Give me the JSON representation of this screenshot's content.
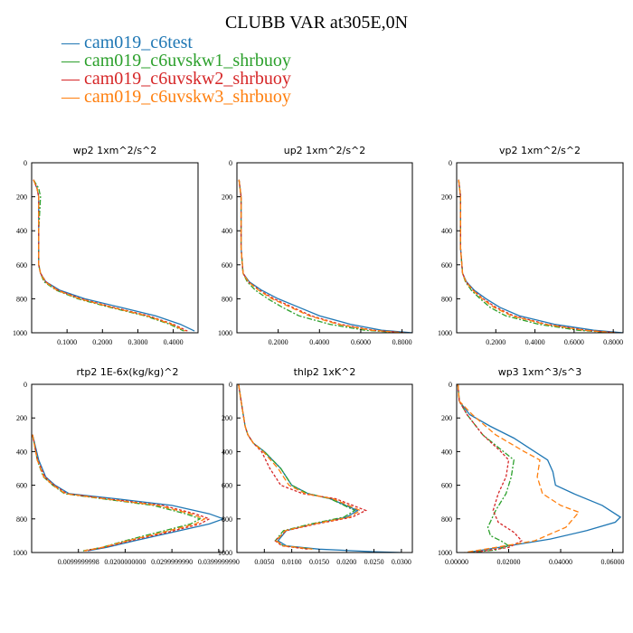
{
  "title": "CLUBB VAR at305E,0N",
  "legend": [
    {
      "label": "— cam019_c6test",
      "color": "#1f77b4"
    },
    {
      "label": "— cam019_c6uvskw1_shrbuoy",
      "color": "#2ca02c"
    },
    {
      "label": "— cam019_c6uvskw2_shrbuoy",
      "color": "#d62728"
    },
    {
      "label": "— cam019_c6uvskw3_shrbuoy",
      "color": "#ff7f0e"
    }
  ],
  "chart_data": [
    {
      "type": "line",
      "title": "wp2   1xm^2/s^2",
      "xlim": [
        0,
        0.47
      ],
      "ylim": [
        1000,
        0
      ],
      "xticks": [
        0.1,
        0.2,
        0.3,
        0.4
      ],
      "xtick_labels": [
        "0.1000",
        "0.2000",
        "0.3000",
        "0.4000"
      ],
      "yticks": [
        0,
        200,
        400,
        600,
        800,
        1000
      ],
      "series": [
        {
          "color": "#1f77b4",
          "dash": "",
          "x": [
            0.005,
            0.015,
            0.02,
            0.02,
            0.02,
            0.025,
            0.04,
            0.08,
            0.15,
            0.25,
            0.35,
            0.42,
            0.46
          ],
          "y": [
            100,
            150,
            200,
            400,
            600,
            650,
            700,
            750,
            800,
            850,
            900,
            950,
            990
          ]
        },
        {
          "color": "#2ca02c",
          "dash": "6,2,2,2",
          "x": [
            0.005,
            0.02,
            0.025,
            0.02,
            0.02,
            0.025,
            0.035,
            0.07,
            0.13,
            0.22,
            0.32,
            0.39,
            0.43
          ],
          "y": [
            100,
            150,
            200,
            400,
            600,
            650,
            700,
            750,
            800,
            850,
            900,
            950,
            990
          ]
        },
        {
          "color": "#d62728",
          "dash": "3,2",
          "x": [
            0.005,
            0.015,
            0.02,
            0.02,
            0.02,
            0.025,
            0.04,
            0.075,
            0.14,
            0.23,
            0.33,
            0.4,
            0.44
          ],
          "y": [
            100,
            150,
            200,
            400,
            600,
            650,
            700,
            750,
            800,
            850,
            900,
            950,
            990
          ]
        },
        {
          "color": "#ff7f0e",
          "dash": "6,3",
          "x": [
            0.005,
            0.015,
            0.02,
            0.02,
            0.02,
            0.025,
            0.038,
            0.072,
            0.135,
            0.225,
            0.325,
            0.395,
            0.435
          ],
          "y": [
            100,
            150,
            200,
            400,
            600,
            650,
            700,
            750,
            800,
            850,
            900,
            950,
            990
          ]
        }
      ]
    },
    {
      "type": "line",
      "title": "up2   1xm^2/s^2",
      "xlim": [
        0,
        0.85
      ],
      "ylim": [
        1000,
        0
      ],
      "xticks": [
        0.2,
        0.4,
        0.6,
        0.8
      ],
      "xtick_labels": [
        "0.2000",
        "0.4000",
        "0.6000",
        "0.8000"
      ],
      "yticks": [
        0,
        200,
        400,
        600,
        800,
        1000
      ],
      "series": [
        {
          "color": "#1f77b4",
          "dash": "",
          "x": [
            0.01,
            0.02,
            0.02,
            0.03,
            0.06,
            0.12,
            0.2,
            0.3,
            0.4,
            0.55,
            0.7,
            0.85
          ],
          "y": [
            100,
            200,
            500,
            650,
            700,
            750,
            800,
            850,
            900,
            950,
            985,
            1000
          ]
        },
        {
          "color": "#2ca02c",
          "dash": "6,2,2,2",
          "x": [
            0.01,
            0.02,
            0.02,
            0.03,
            0.05,
            0.09,
            0.15,
            0.22,
            0.3,
            0.45,
            0.62,
            0.8
          ],
          "y": [
            100,
            200,
            500,
            650,
            700,
            750,
            800,
            850,
            900,
            950,
            985,
            1000
          ]
        },
        {
          "color": "#d62728",
          "dash": "3,2",
          "x": [
            0.01,
            0.02,
            0.02,
            0.03,
            0.055,
            0.11,
            0.18,
            0.27,
            0.36,
            0.5,
            0.66,
            0.82
          ],
          "y": [
            100,
            200,
            500,
            650,
            700,
            750,
            800,
            850,
            900,
            950,
            985,
            1000
          ]
        },
        {
          "color": "#ff7f0e",
          "dash": "6,3",
          "x": [
            0.01,
            0.02,
            0.02,
            0.03,
            0.055,
            0.105,
            0.17,
            0.26,
            0.35,
            0.49,
            0.65,
            0.81
          ],
          "y": [
            100,
            200,
            500,
            650,
            700,
            750,
            800,
            850,
            900,
            950,
            985,
            1000
          ]
        }
      ]
    },
    {
      "type": "line",
      "title": "vp2   1xm^2/s^2",
      "xlim": [
        0,
        0.85
      ],
      "ylim": [
        1000,
        0
      ],
      "xticks": [
        0.2,
        0.4,
        0.6,
        0.8
      ],
      "xtick_labels": [
        "0.2000",
        "0.4000",
        "0.6000",
        "0.8000"
      ],
      "yticks": [
        0,
        200,
        400,
        600,
        800,
        1000
      ],
      "series": [
        {
          "color": "#1f77b4",
          "dash": "",
          "x": [
            0.01,
            0.02,
            0.02,
            0.03,
            0.05,
            0.09,
            0.15,
            0.22,
            0.32,
            0.5,
            0.7,
            0.85
          ],
          "y": [
            100,
            200,
            500,
            650,
            700,
            750,
            800,
            850,
            900,
            950,
            985,
            1000
          ]
        },
        {
          "color": "#2ca02c",
          "dash": "6,2,2,2",
          "x": [
            0.01,
            0.02,
            0.02,
            0.03,
            0.045,
            0.075,
            0.12,
            0.17,
            0.25,
            0.42,
            0.62,
            0.8
          ],
          "y": [
            100,
            200,
            500,
            650,
            700,
            750,
            800,
            850,
            900,
            950,
            985,
            1000
          ]
        },
        {
          "color": "#d62728",
          "dash": "3,2",
          "x": [
            0.01,
            0.02,
            0.02,
            0.03,
            0.048,
            0.085,
            0.135,
            0.2,
            0.29,
            0.46,
            0.66,
            0.82
          ],
          "y": [
            100,
            200,
            500,
            650,
            700,
            750,
            800,
            850,
            900,
            950,
            985,
            1000
          ]
        },
        {
          "color": "#ff7f0e",
          "dash": "6,3",
          "x": [
            0.01,
            0.02,
            0.02,
            0.03,
            0.047,
            0.082,
            0.13,
            0.19,
            0.28,
            0.45,
            0.65,
            0.81
          ],
          "y": [
            100,
            200,
            500,
            650,
            700,
            750,
            800,
            850,
            900,
            950,
            985,
            1000
          ]
        }
      ]
    },
    {
      "type": "line",
      "title": "rtp2   1E-6x(kg/kg)^2",
      "xlim": [
        0,
        0.041
      ],
      "ylim": [
        1000,
        0
      ],
      "xticks": [
        0.01,
        0.02,
        0.03,
        0.04
      ],
      "xtick_labels": [
        "0.0099999998",
        "0.0200000000",
        "0.0299999990",
        "0.0399999990"
      ],
      "yticks": [
        0,
        200,
        400,
        600,
        800,
        1000
      ],
      "series": [
        {
          "color": "#1f77b4",
          "dash": "",
          "x": [
            0.0002,
            0.0015,
            0.003,
            0.005,
            0.008,
            0.018,
            0.03,
            0.038,
            0.041,
            0.038,
            0.03,
            0.022,
            0.016,
            0.012
          ],
          "y": [
            300,
            450,
            550,
            600,
            650,
            680,
            720,
            770,
            800,
            830,
            880,
            930,
            970,
            990
          ]
        },
        {
          "color": "#2ca02c",
          "dash": "6,2,2,2",
          "x": [
            0.0002,
            0.0012,
            0.0025,
            0.0045,
            0.007,
            0.015,
            0.026,
            0.033,
            0.036,
            0.034,
            0.027,
            0.02,
            0.015,
            0.011
          ],
          "y": [
            300,
            450,
            550,
            600,
            650,
            680,
            720,
            770,
            800,
            830,
            880,
            930,
            970,
            990
          ]
        },
        {
          "color": "#d62728",
          "dash": "3,2",
          "x": [
            0.0002,
            0.0013,
            0.0028,
            0.0048,
            0.0075,
            0.016,
            0.028,
            0.035,
            0.038,
            0.036,
            0.029,
            0.021,
            0.0155,
            0.0115
          ],
          "y": [
            300,
            450,
            550,
            600,
            650,
            680,
            720,
            770,
            800,
            830,
            880,
            930,
            970,
            990
          ]
        },
        {
          "color": "#ff7f0e",
          "dash": "6,3",
          "x": [
            0.0002,
            0.0012,
            0.0026,
            0.0046,
            0.0072,
            0.0155,
            0.027,
            0.034,
            0.037,
            0.035,
            0.028,
            0.0205,
            0.015,
            0.0112
          ],
          "y": [
            300,
            450,
            550,
            600,
            650,
            680,
            720,
            770,
            800,
            830,
            880,
            930,
            970,
            990
          ]
        }
      ]
    },
    {
      "type": "line",
      "title": "thlp2   1xK^2",
      "xlim": [
        0,
        0.032
      ],
      "ylim": [
        1000,
        0
      ],
      "xticks": [
        0.005,
        0.01,
        0.015,
        0.02,
        0.025,
        0.03
      ],
      "xtick_labels": [
        "0.0050",
        "0.0100",
        "0.0150",
        "0.0200",
        "0.0250",
        "0.0300"
      ],
      "yticks": [
        0,
        200,
        400,
        600,
        800,
        1000
      ],
      "series": [
        {
          "color": "#1f77b4",
          "dash": "",
          "x": [
            0.0003,
            0.001,
            0.0015,
            0.002,
            0.003,
            0.005,
            0.008,
            0.01,
            0.013,
            0.017,
            0.022,
            0.02,
            0.014,
            0.009,
            0.0075,
            0.009,
            0.015,
            0.025,
            0.03
          ],
          "y": [
            0,
            150,
            250,
            300,
            350,
            400,
            500,
            600,
            650,
            680,
            750,
            790,
            830,
            870,
            930,
            960,
            980,
            995,
            1000
          ]
        },
        {
          "color": "#2ca02c",
          "dash": "6,2,2,2",
          "x": [
            0.0003,
            0.001,
            0.0015,
            0.002,
            0.003,
            0.005,
            0.008,
            0.01,
            0.013,
            0.017,
            0.0215,
            0.0195,
            0.0135,
            0.0085,
            0.007,
            0.0085,
            0.014
          ],
          "y": [
            0,
            150,
            250,
            300,
            350,
            400,
            500,
            600,
            650,
            680,
            750,
            790,
            830,
            870,
            930,
            960,
            980
          ]
        },
        {
          "color": "#d62728",
          "dash": "3,2",
          "x": [
            0.0003,
            0.001,
            0.0015,
            0.002,
            0.003,
            0.0045,
            0.006,
            0.008,
            0.012,
            0.018,
            0.0235,
            0.021,
            0.0145,
            0.009,
            0.007,
            0.0082,
            0.013
          ],
          "y": [
            0,
            150,
            250,
            300,
            350,
            400,
            500,
            600,
            650,
            680,
            750,
            790,
            830,
            870,
            930,
            960,
            980
          ]
        },
        {
          "color": "#ff7f0e",
          "dash": "6,3",
          "x": [
            0.0003,
            0.001,
            0.0015,
            0.002,
            0.003,
            0.0048,
            0.0075,
            0.0095,
            0.0125,
            0.0175,
            0.0225,
            0.0205,
            0.014,
            0.0088,
            0.0072,
            0.0085,
            0.0138
          ],
          "y": [
            0,
            150,
            250,
            300,
            350,
            400,
            500,
            600,
            650,
            680,
            750,
            790,
            830,
            870,
            930,
            960,
            980
          ]
        }
      ]
    },
    {
      "type": "line",
      "title": "wp3   1xm^3/s^3",
      "xlim": [
        0,
        0.064
      ],
      "ylim": [
        1000,
        0
      ],
      "xticks": [
        0,
        0.02,
        0.04,
        0.06
      ],
      "xtick_labels": [
        "0.00000",
        "0.02000",
        "0.04000",
        "0.06000"
      ],
      "yticks": [
        0,
        200,
        400,
        600,
        800,
        1000
      ],
      "series": [
        {
          "color": "#1f77b4",
          "dash": "",
          "x": [
            0.0005,
            0.001,
            0.005,
            0.013,
            0.022,
            0.03,
            0.035,
            0.037,
            0.038,
            0.045,
            0.056,
            0.063,
            0.061,
            0.05,
            0.036,
            0.02,
            0.004
          ],
          "y": [
            0,
            100,
            180,
            250,
            320,
            400,
            450,
            520,
            600,
            650,
            720,
            790,
            820,
            870,
            920,
            960,
            1000
          ]
        },
        {
          "color": "#2ca02c",
          "dash": "6,2,2,2",
          "x": [
            0.0005,
            0.001,
            0.004,
            0.01,
            0.018,
            0.022,
            0.021,
            0.019,
            0.015,
            0.012,
            0.013,
            0.017,
            0.02,
            0.015,
            0.005
          ],
          "y": [
            0,
            100,
            180,
            300,
            400,
            450,
            550,
            650,
            750,
            850,
            900,
            930,
            960,
            985,
            1000
          ]
        },
        {
          "color": "#d62728",
          "dash": "3,2",
          "x": [
            0.0005,
            0.001,
            0.004,
            0.01,
            0.017,
            0.02,
            0.019,
            0.016,
            0.014,
            0.016,
            0.022,
            0.025,
            0.02,
            0.006
          ],
          "y": [
            0,
            100,
            180,
            300,
            400,
            450,
            550,
            650,
            750,
            820,
            880,
            930,
            970,
            1000
          ]
        },
        {
          "color": "#ff7f0e",
          "dash": "6,3",
          "x": [
            0.0005,
            0.001,
            0.006,
            0.015,
            0.026,
            0.032,
            0.031,
            0.033,
            0.04,
            0.047,
            0.042,
            0.03,
            0.015,
            0.003
          ],
          "y": [
            0,
            100,
            180,
            300,
            400,
            450,
            550,
            650,
            720,
            760,
            850,
            930,
            970,
            1000
          ]
        }
      ]
    }
  ]
}
